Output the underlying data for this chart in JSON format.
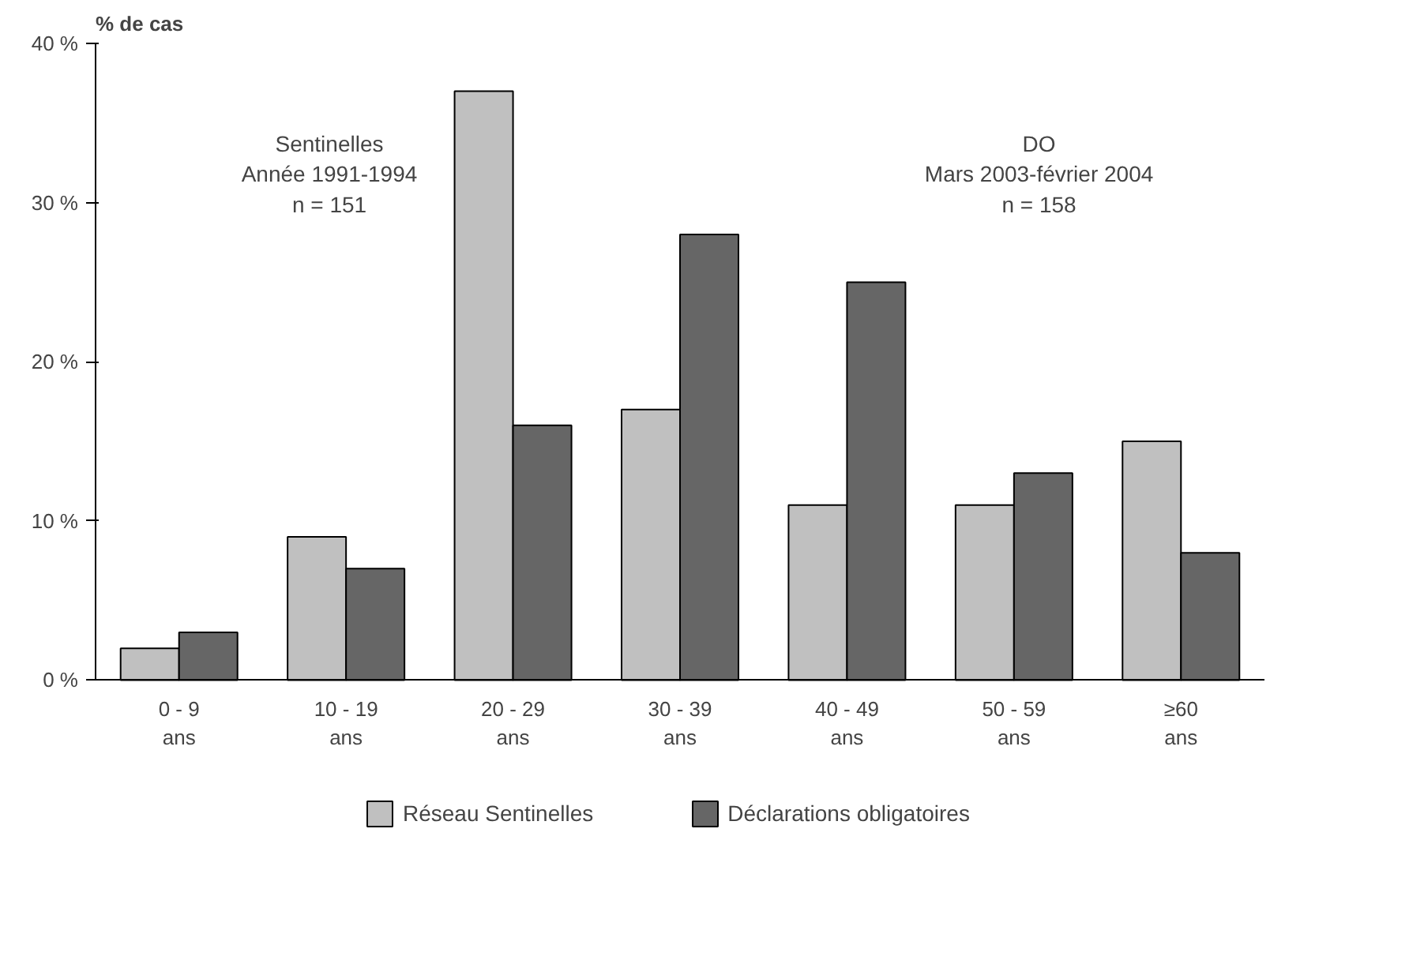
{
  "chart_data": {
    "type": "bar",
    "ylabel": "% de cas",
    "categories": [
      "0 - 9\nans",
      "10 - 19\nans",
      "20 - 29\nans",
      "30 - 39\nans",
      "40 - 49\nans",
      "50 - 59\nans",
      "≥60\nans"
    ],
    "series": [
      {
        "name": "Réseau Sentinelles",
        "color": "#c0c0c0",
        "values": [
          2,
          9,
          37,
          17,
          11,
          11,
          15
        ]
      },
      {
        "name": "Déclarations obligatoires",
        "color": "#666666",
        "values": [
          3,
          7,
          16,
          28,
          25,
          13,
          8
        ]
      }
    ],
    "ylim": [
      0,
      40
    ],
    "yticks": [
      {
        "value": 0,
        "label": "0 %"
      },
      {
        "value": 10,
        "label": "10 %"
      },
      {
        "value": 20,
        "label": "20 %"
      },
      {
        "value": 30,
        "label": "30 %"
      },
      {
        "value": 40,
        "label": "40 %"
      }
    ],
    "annotations": [
      "Sentinelles\nAnnée 1991-1994\nn = 151",
      "DO\nMars 2003-février 2004\nn = 158"
    ],
    "grid": false,
    "legend": "bottom"
  }
}
